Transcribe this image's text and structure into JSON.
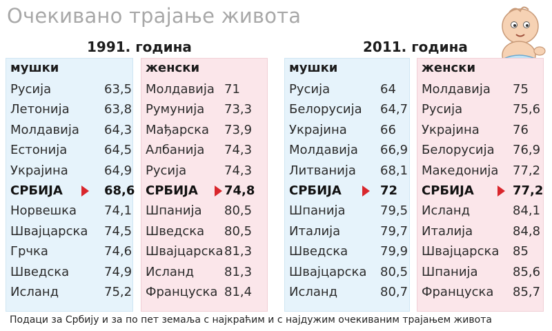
{
  "title": "Очекивано трајање живота",
  "footnote": "Подаци за Србију и за по пет земаља с најкраћим и с најдужим очекиваним трајањем живота",
  "colors": {
    "male_panel": "#e6f3fb",
    "female_panel": "#fbe6ea",
    "marker": "#d9262c",
    "title": "#a8a8a8"
  },
  "icons": {
    "illustration": "baby-illustration",
    "marker": "triangle-right-marker"
  },
  "chart_data": {
    "type": "table",
    "highlight": "СРБИЈА",
    "groups": [
      {
        "year_label": "1991. година",
        "columns": [
          {
            "header": "мушки",
            "rows": [
              {
                "country": "Русија",
                "value": "63,5"
              },
              {
                "country": "Летонија",
                "value": "63,8"
              },
              {
                "country": "Молдавија",
                "value": "64,3"
              },
              {
                "country": "Естонија",
                "value": "64,5"
              },
              {
                "country": "Украјина",
                "value": "64,9"
              },
              {
                "country": "СРБИЈА",
                "value": "68,6"
              },
              {
                "country": "Норвешка",
                "value": "74,1"
              },
              {
                "country": "Швајцарска",
                "value": "74,5"
              },
              {
                "country": "Грчка",
                "value": "74,6"
              },
              {
                "country": "Шведска",
                "value": "74,9"
              },
              {
                "country": "Исланд",
                "value": "75,2"
              }
            ]
          },
          {
            "header": "женски",
            "rows": [
              {
                "country": "Молдавија",
                "value": "71"
              },
              {
                "country": "Румунија",
                "value": "73,3"
              },
              {
                "country": "Мађарска",
                "value": "73,9"
              },
              {
                "country": "Албанија",
                "value": "74,3"
              },
              {
                "country": "Русија",
                "value": "74,3"
              },
              {
                "country": "СРБИЈА",
                "value": "74,8"
              },
              {
                "country": "Шпанија",
                "value": "80,5"
              },
              {
                "country": "Шведска",
                "value": "80,5"
              },
              {
                "country": "Швајцарска",
                "value": "81,3"
              },
              {
                "country": "Исланд",
                "value": "81,3"
              },
              {
                "country": "Француска",
                "value": "81,4"
              }
            ]
          }
        ]
      },
      {
        "year_label": "2011. година",
        "columns": [
          {
            "header": "мушки",
            "rows": [
              {
                "country": "Русија",
                "value": "64"
              },
              {
                "country": "Белорусија",
                "value": "64,7"
              },
              {
                "country": "Украјина",
                "value": "66"
              },
              {
                "country": "Молдавија",
                "value": "66,9"
              },
              {
                "country": "Литванија",
                "value": "68,1"
              },
              {
                "country": "СРБИЈА",
                "value": "72"
              },
              {
                "country": "Шпанија",
                "value": "79,5"
              },
              {
                "country": "Италија",
                "value": "79,7"
              },
              {
                "country": "Шведска",
                "value": "79,9"
              },
              {
                "country": "Швајцарска",
                "value": "80,5"
              },
              {
                "country": "Исланд",
                "value": "80,7"
              }
            ]
          },
          {
            "header": "женски",
            "rows": [
              {
                "country": "Молдавија",
                "value": "75"
              },
              {
                "country": "Русија",
                "value": "75,6"
              },
              {
                "country": "Украјина",
                "value": "76"
              },
              {
                "country": "Белорусија",
                "value": "76,9"
              },
              {
                "country": "Македонија",
                "value": "77,2"
              },
              {
                "country": "СРБИЈА",
                "value": "77,2"
              },
              {
                "country": "Исланд",
                "value": "84,1"
              },
              {
                "country": "Италија",
                "value": "84,8"
              },
              {
                "country": "Швајцарска",
                "value": "85"
              },
              {
                "country": "Шпанија",
                "value": "85,6"
              },
              {
                "country": "Француска",
                "value": "85,7"
              }
            ]
          }
        ]
      }
    ]
  }
}
